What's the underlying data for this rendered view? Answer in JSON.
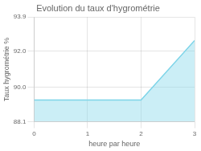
{
  "chart_data": {
    "type": "line",
    "title": "Evolution du taux d'hygrométrie",
    "xlabel": "heure par heure",
    "ylabel": "Taux hygrométrie %",
    "x": [
      0,
      2,
      3
    ],
    "values": [
      89.3,
      89.3,
      92.6
    ],
    "xlim": [
      0,
      3
    ],
    "xticks": [
      0,
      1,
      2,
      3
    ],
    "ylim": [
      88.1,
      93.9
    ],
    "yticks": [
      88.1,
      {
        "value": 90,
        "label": "90.0"
      },
      {
        "value": 92,
        "label": "92.0"
      },
      93.9
    ],
    "grid": true,
    "color": "#7dd4e8"
  }
}
